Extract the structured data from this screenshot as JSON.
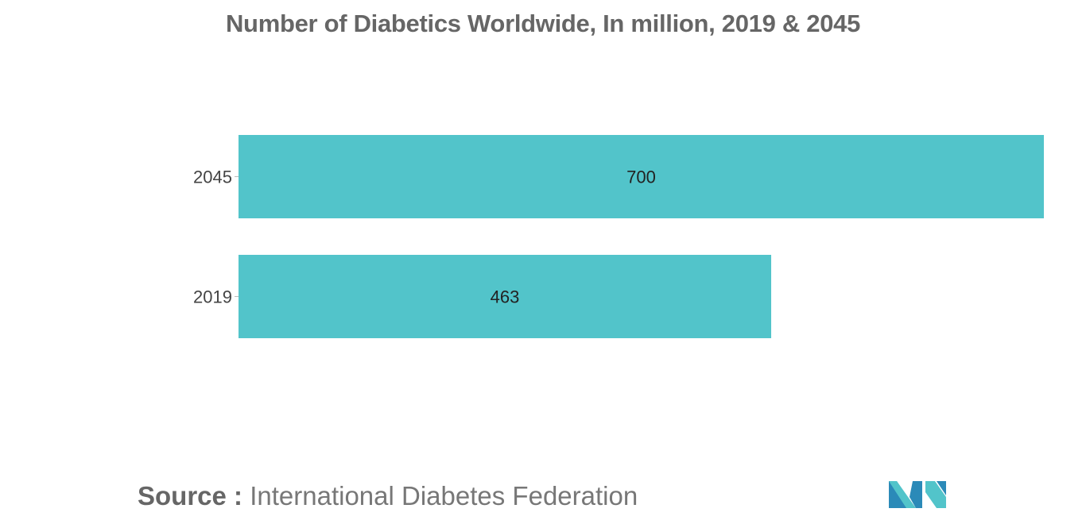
{
  "chart_data": {
    "type": "bar",
    "orientation": "horizontal",
    "title": "Number of Diabetics Worldwide, In million, 2019 & 2045",
    "categories": [
      "2045",
      "2019"
    ],
    "values": [
      700,
      463
    ],
    "data_labels": [
      "700",
      "463"
    ],
    "xlim": [
      0,
      700
    ],
    "grid": false,
    "legend": "none",
    "bar_color": "#52c4ca"
  },
  "source": {
    "label": "Source :",
    "text": "International Diabetes Federation"
  },
  "logo": {
    "icon": "mordor-intelligence-logo-icon",
    "colors": [
      "#2b8ab8",
      "#52c4ca"
    ]
  }
}
